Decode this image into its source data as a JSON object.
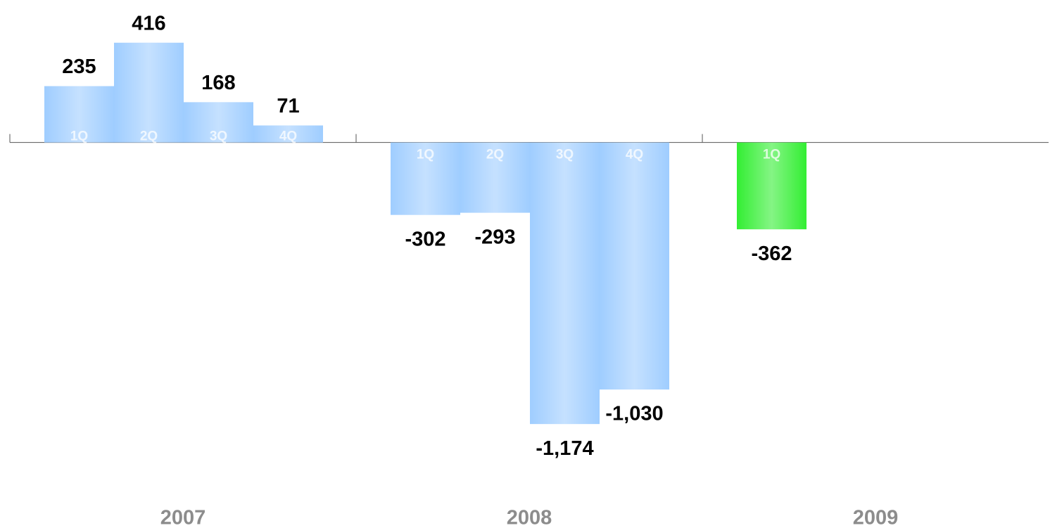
{
  "chart_data": {
    "type": "bar",
    "ylim": [
      -1200,
      600
    ],
    "groups": [
      {
        "name": "2007",
        "color": "#9fcdff",
        "categories": [
          "1Q",
          "2Q",
          "3Q",
          "4Q"
        ],
        "values": [
          235,
          416,
          168,
          71
        ],
        "value_labels": [
          "235",
          "416",
          "168",
          "71"
        ]
      },
      {
        "name": "2008",
        "color": "#9fcdff",
        "categories": [
          "1Q",
          "2Q",
          "3Q",
          "4Q"
        ],
        "values": [
          -302,
          -293,
          -1174,
          -1030
        ],
        "value_labels": [
          "-302",
          "-293",
          "-1,174",
          "-1,030"
        ]
      },
      {
        "name": "2009",
        "color": "#33ee33",
        "categories": [
          "1Q"
        ],
        "values": [
          -362
        ],
        "value_labels": [
          "-362"
        ]
      }
    ]
  }
}
